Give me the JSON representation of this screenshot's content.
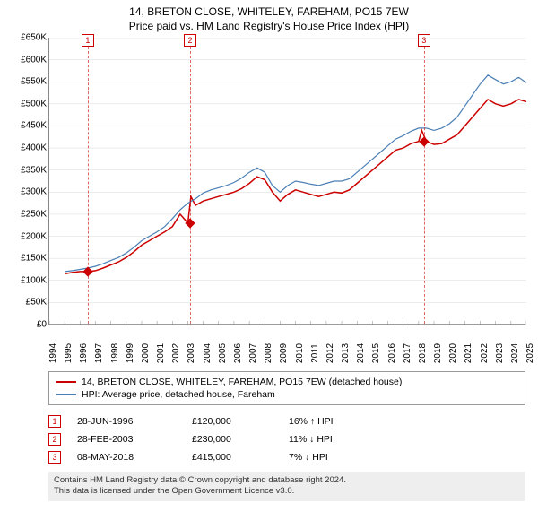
{
  "chart": {
    "type": "line",
    "title_line1": "14, BRETON CLOSE, WHITELEY, FAREHAM, PO15 7EW",
    "title_line2": "Price paid vs. HM Land Registry's House Price Index (HPI)",
    "background_color": "#ffffff",
    "grid_color": "#d8d8d8",
    "axis_color": "#888888",
    "text_color": "#000000",
    "title_fontsize": 12,
    "label_fontsize": 10,
    "y": {
      "min": 0,
      "max": 650000,
      "step": 50000,
      "ticks": [
        "£0",
        "£50K",
        "£100K",
        "£150K",
        "£200K",
        "£250K",
        "£300K",
        "£350K",
        "£400K",
        "£450K",
        "£500K",
        "£550K",
        "£600K",
        "£650K"
      ]
    },
    "x": {
      "min": 1994,
      "max": 2025,
      "step": 1,
      "ticks": [
        "1994",
        "1995",
        "1996",
        "1997",
        "1998",
        "1999",
        "2000",
        "2001",
        "2002",
        "2003",
        "2004",
        "2005",
        "2006",
        "2007",
        "2008",
        "2009",
        "2010",
        "2011",
        "2012",
        "2013",
        "2014",
        "2015",
        "2016",
        "2017",
        "2018",
        "2019",
        "2020",
        "2021",
        "2022",
        "2023",
        "2024",
        "2025"
      ]
    },
    "series": [
      {
        "name": "14, BRETON CLOSE, WHITELEY, FAREHAM, PO15 7EW (detached house)",
        "color": "#cc0000",
        "width": 1.5,
        "data": [
          [
            1995,
            115000
          ],
          [
            1995.5,
            118000
          ],
          [
            1996,
            120000
          ],
          [
            1996.5,
            120000
          ],
          [
            1997,
            122000
          ],
          [
            1997.5,
            128000
          ],
          [
            1998,
            135000
          ],
          [
            1998.5,
            142000
          ],
          [
            1999,
            152000
          ],
          [
            1999.5,
            165000
          ],
          [
            2000,
            180000
          ],
          [
            2000.5,
            190000
          ],
          [
            2001,
            200000
          ],
          [
            2001.5,
            210000
          ],
          [
            2002,
            222000
          ],
          [
            2002.5,
            250000
          ],
          [
            2003,
            230000
          ],
          [
            2003.2,
            290000
          ],
          [
            2003.5,
            270000
          ],
          [
            2004,
            280000
          ],
          [
            2004.5,
            285000
          ],
          [
            2005,
            290000
          ],
          [
            2005.5,
            295000
          ],
          [
            2006,
            300000
          ],
          [
            2006.5,
            308000
          ],
          [
            2007,
            320000
          ],
          [
            2007.5,
            335000
          ],
          [
            2008,
            328000
          ],
          [
            2008.5,
            300000
          ],
          [
            2009,
            280000
          ],
          [
            2009.5,
            295000
          ],
          [
            2010,
            305000
          ],
          [
            2010.5,
            300000
          ],
          [
            2011,
            295000
          ],
          [
            2011.5,
            290000
          ],
          [
            2012,
            295000
          ],
          [
            2012.5,
            300000
          ],
          [
            2013,
            298000
          ],
          [
            2013.5,
            305000
          ],
          [
            2014,
            320000
          ],
          [
            2014.5,
            335000
          ],
          [
            2015,
            350000
          ],
          [
            2015.5,
            365000
          ],
          [
            2016,
            380000
          ],
          [
            2016.5,
            395000
          ],
          [
            2017,
            400000
          ],
          [
            2017.5,
            410000
          ],
          [
            2018,
            415000
          ],
          [
            2018.2,
            440000
          ],
          [
            2018.5,
            415000
          ],
          [
            2019,
            408000
          ],
          [
            2019.5,
            410000
          ],
          [
            2020,
            420000
          ],
          [
            2020.5,
            430000
          ],
          [
            2021,
            450000
          ],
          [
            2021.5,
            470000
          ],
          [
            2022,
            490000
          ],
          [
            2022.5,
            510000
          ],
          [
            2023,
            500000
          ],
          [
            2023.5,
            495000
          ],
          [
            2024,
            500000
          ],
          [
            2024.5,
            510000
          ],
          [
            2025,
            505000
          ]
        ]
      },
      {
        "name": "HPI: Average price, detached house, Fareham",
        "color": "#4a7fb5",
        "width": 1.2,
        "data": [
          [
            1995,
            120000
          ],
          [
            1995.5,
            122000
          ],
          [
            1996,
            125000
          ],
          [
            1996.5,
            128000
          ],
          [
            1997,
            132000
          ],
          [
            1997.5,
            138000
          ],
          [
            1998,
            145000
          ],
          [
            1998.5,
            152000
          ],
          [
            1999,
            162000
          ],
          [
            1999.5,
            175000
          ],
          [
            2000,
            190000
          ],
          [
            2000.5,
            200000
          ],
          [
            2001,
            210000
          ],
          [
            2001.5,
            222000
          ],
          [
            2002,
            240000
          ],
          [
            2002.5,
            260000
          ],
          [
            2003,
            275000
          ],
          [
            2003.5,
            285000
          ],
          [
            2004,
            298000
          ],
          [
            2004.5,
            305000
          ],
          [
            2005,
            310000
          ],
          [
            2005.5,
            315000
          ],
          [
            2006,
            322000
          ],
          [
            2006.5,
            332000
          ],
          [
            2007,
            345000
          ],
          [
            2007.5,
            355000
          ],
          [
            2008,
            345000
          ],
          [
            2008.5,
            315000
          ],
          [
            2009,
            300000
          ],
          [
            2009.5,
            315000
          ],
          [
            2010,
            325000
          ],
          [
            2010.5,
            322000
          ],
          [
            2011,
            318000
          ],
          [
            2011.5,
            315000
          ],
          [
            2012,
            320000
          ],
          [
            2012.5,
            325000
          ],
          [
            2013,
            325000
          ],
          [
            2013.5,
            330000
          ],
          [
            2014,
            345000
          ],
          [
            2014.5,
            360000
          ],
          [
            2015,
            375000
          ],
          [
            2015.5,
            390000
          ],
          [
            2016,
            405000
          ],
          [
            2016.5,
            420000
          ],
          [
            2017,
            428000
          ],
          [
            2017.5,
            438000
          ],
          [
            2018,
            445000
          ],
          [
            2018.5,
            445000
          ],
          [
            2019,
            440000
          ],
          [
            2019.5,
            445000
          ],
          [
            2020,
            455000
          ],
          [
            2020.5,
            470000
          ],
          [
            2021,
            495000
          ],
          [
            2021.5,
            520000
          ],
          [
            2022,
            545000
          ],
          [
            2022.5,
            565000
          ],
          [
            2023,
            555000
          ],
          [
            2023.5,
            545000
          ],
          [
            2024,
            550000
          ],
          [
            2024.5,
            560000
          ],
          [
            2025,
            548000
          ]
        ]
      }
    ],
    "markers": [
      {
        "n": "1",
        "year": 1996.5
      },
      {
        "n": "2",
        "year": 2003.15
      },
      {
        "n": "3",
        "year": 2018.35
      }
    ],
    "sale_points": [
      {
        "year": 1996.5,
        "value": 120000
      },
      {
        "year": 2003.15,
        "value": 230000
      },
      {
        "year": 2018.35,
        "value": 415000
      }
    ]
  },
  "legend": {
    "rows": [
      {
        "color": "#cc0000",
        "label": "14, BRETON CLOSE, WHITELEY, FAREHAM, PO15 7EW (detached house)"
      },
      {
        "color": "#4a7fb5",
        "label": "HPI: Average price, detached house, Fareham"
      }
    ]
  },
  "events": [
    {
      "n": "1",
      "date": "28-JUN-1996",
      "price": "£120,000",
      "delta": "16% ↑ HPI"
    },
    {
      "n": "2",
      "date": "28-FEB-2003",
      "price": "£230,000",
      "delta": "11% ↓ HPI"
    },
    {
      "n": "3",
      "date": "08-MAY-2018",
      "price": "£415,000",
      "delta": "7% ↓ HPI"
    }
  ],
  "footer": {
    "line1": "Contains HM Land Registry data © Crown copyright and database right 2024.",
    "line2": "This data is licensed under the Open Government Licence v3.0."
  }
}
